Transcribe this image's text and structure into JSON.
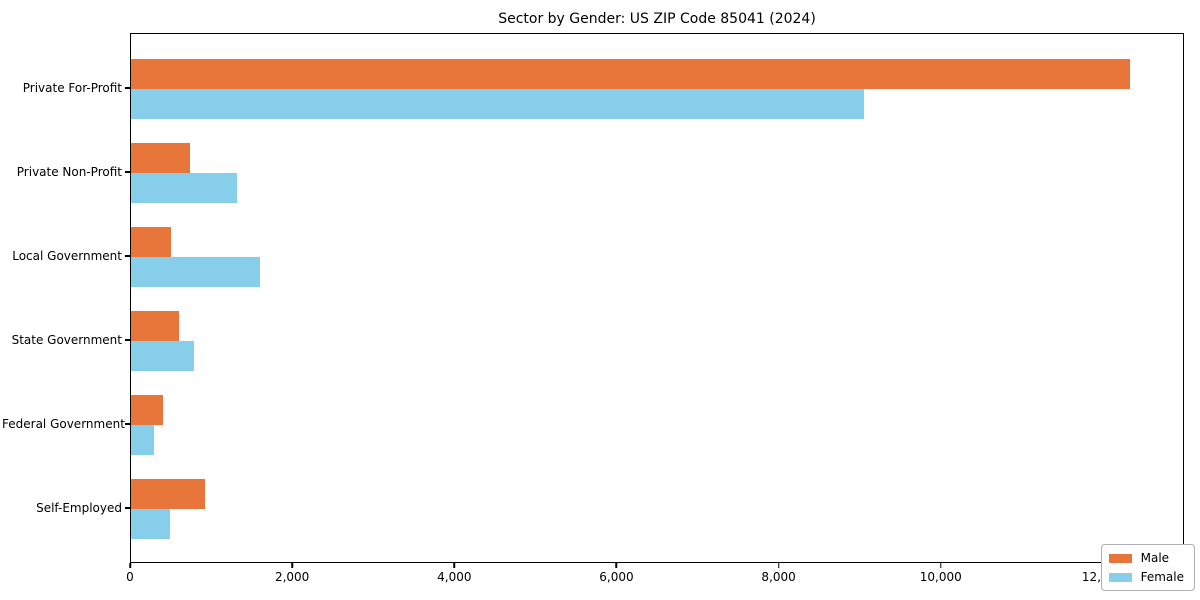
{
  "chart_data": {
    "type": "bar",
    "orientation": "horizontal",
    "title": "Sector by Gender: US ZIP Code 85041 (2024)",
    "categories": [
      "Private For-Profit",
      "Private Non-Profit",
      "Local Government",
      "State Government",
      "Federal Government",
      "Self-Employed"
    ],
    "series": [
      {
        "name": "Male",
        "color": "#e8763a",
        "values": [
          12350,
          730,
          490,
          590,
          390,
          910
        ]
      },
      {
        "name": "Female",
        "color": "#87ceeb",
        "values": [
          9060,
          1310,
          1600,
          775,
          290,
          480
        ]
      }
    ],
    "xlabel": "",
    "ylabel": "",
    "xlim": [
      0,
      13000
    ],
    "x_ticks": [
      0,
      2000,
      4000,
      6000,
      8000,
      10000,
      12000
    ],
    "x_tick_labels": [
      "0",
      "2,000",
      "4,000",
      "6,000",
      "8,000",
      "10,000",
      "12,000"
    ],
    "grid": false,
    "legend_position": "lower right"
  },
  "legend": {
    "items": [
      {
        "label": "Male",
        "color": "#e8763a"
      },
      {
        "label": "Female",
        "color": "#87ceeb"
      }
    ]
  }
}
